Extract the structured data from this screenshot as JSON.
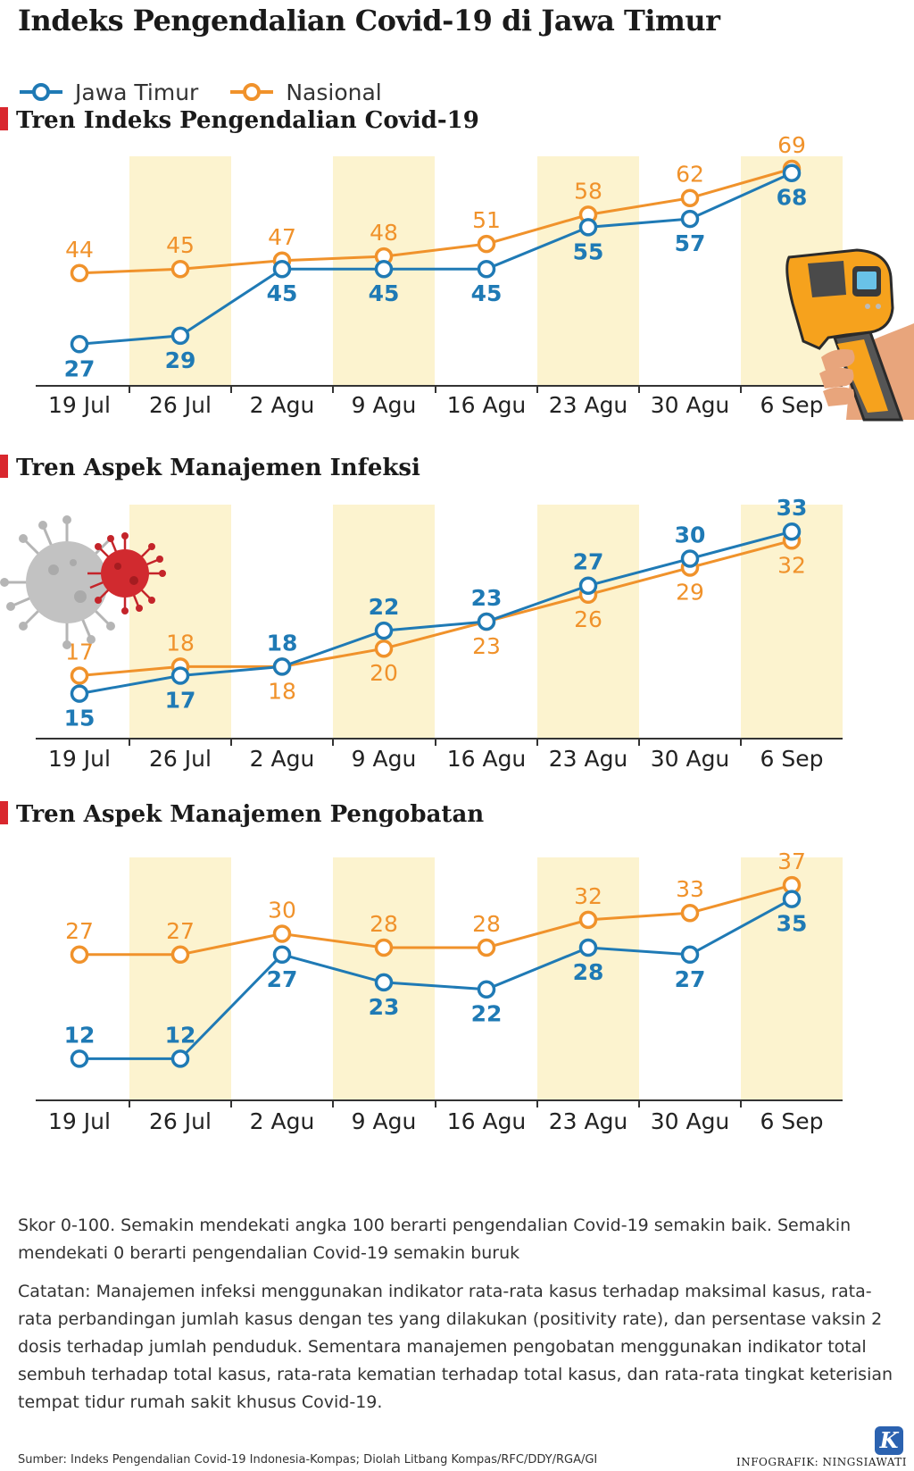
{
  "title": "Indeks Pengendalian Covid-19 di Jawa Timur",
  "legend": [
    {
      "name": "Jawa Timur",
      "color": "#1f7ab5"
    },
    {
      "name": "Nasional",
      "color": "#f0922b"
    }
  ],
  "colors": {
    "jawa_timur": "#1f7ab5",
    "nasional": "#f0922b",
    "band": "#fcf3cf",
    "title_marker": "#d9272e"
  },
  "chart_data": [
    {
      "type": "line",
      "title": "Tren Indeks Pengendalian Covid-19",
      "categories": [
        "19 Jul",
        "26 Jul",
        "2 Agu",
        "9 Agu",
        "16 Agu",
        "23 Agu",
        "30 Agu",
        "6 Sep"
      ],
      "series": [
        {
          "name": "Jawa Timur",
          "values": [
            27,
            29,
            45,
            45,
            45,
            55,
            57,
            68
          ]
        },
        {
          "name": "Nasional",
          "values": [
            44,
            45,
            47,
            48,
            51,
            58,
            62,
            69
          ]
        }
      ],
      "ylim": [
        17,
        72
      ],
      "label_pos": {
        "Jawa Timur": [
          "below",
          "below",
          "below",
          "below",
          "below",
          "below",
          "below",
          "below"
        ],
        "Nasional": [
          "above",
          "above",
          "above",
          "above",
          "above",
          "above",
          "above",
          "above"
        ]
      }
    },
    {
      "type": "line",
      "title": "Tren Aspek Manajemen Infeksi",
      "categories": [
        "19 Jul",
        "26 Jul",
        "2 Agu",
        "9 Agu",
        "16 Agu",
        "23 Agu",
        "30 Agu",
        "6 Sep"
      ],
      "series": [
        {
          "name": "Jawa Timur",
          "values": [
            15,
            17,
            18,
            22,
            23,
            27,
            30,
            33
          ]
        },
        {
          "name": "Nasional",
          "values": [
            17,
            18,
            18,
            20,
            23,
            26,
            29,
            32
          ]
        }
      ],
      "ylim": [
        10,
        36
      ],
      "label_pos": {
        "Jawa Timur": [
          "below",
          "below",
          "above",
          "above",
          "above",
          "above",
          "above",
          "above"
        ],
        "Nasional": [
          "above",
          "above",
          "below",
          "below",
          "below",
          "below",
          "below",
          "below"
        ]
      }
    },
    {
      "type": "line",
      "title": "Tren Aspek Manajemen Pengobatan",
      "categories": [
        "19 Jul",
        "26 Jul",
        "2 Agu",
        "9 Agu",
        "16 Agu",
        "23 Agu",
        "30 Agu",
        "6 Sep"
      ],
      "series": [
        {
          "name": "Jawa Timur",
          "values": [
            12,
            12,
            27,
            23,
            22,
            28,
            27,
            35
          ]
        },
        {
          "name": "Nasional",
          "values": [
            27,
            27,
            30,
            28,
            28,
            32,
            33,
            37
          ]
        }
      ],
      "ylim": [
        6,
        41
      ],
      "label_pos": {
        "Jawa Timur": [
          "above",
          "above",
          "below",
          "below",
          "below",
          "below",
          "below",
          "below"
        ],
        "Nasional": [
          "above",
          "above",
          "above",
          "above",
          "above",
          "above",
          "above",
          "above"
        ]
      }
    }
  ],
  "note": {
    "scale": "Skor 0-100. Semakin mendekati angka 100 berarti pengendalian Covid-19 semakin baik. Semakin mendekati 0 berarti pengendalian Covid-19 semakin buruk",
    "catatan": "Catatan: Manajemen infeksi menggunakan indikator rata-rata kasus terhadap maksimal kasus, rata-rata perbandingan jumlah kasus dengan tes yang dilakukan (positivity rate), dan persentase vaksin 2 dosis terhadap jumlah penduduk. Sementara manajemen pengobatan menggunakan indikator total sembuh terhadap total kasus, rata-rata kematian terhadap total kasus, dan rata-rata tingkat keterisian tempat tidur rumah sakit khusus Covid-19."
  },
  "source": "Sumber: Indeks Pengendalian Covid-19 Indonesia-Kompas; Diolah Litbang Kompas/RFC/DDY/RGA/GI",
  "credit": "INFOGRAFIK: NINGSIAWATI",
  "logo_letter": "K"
}
